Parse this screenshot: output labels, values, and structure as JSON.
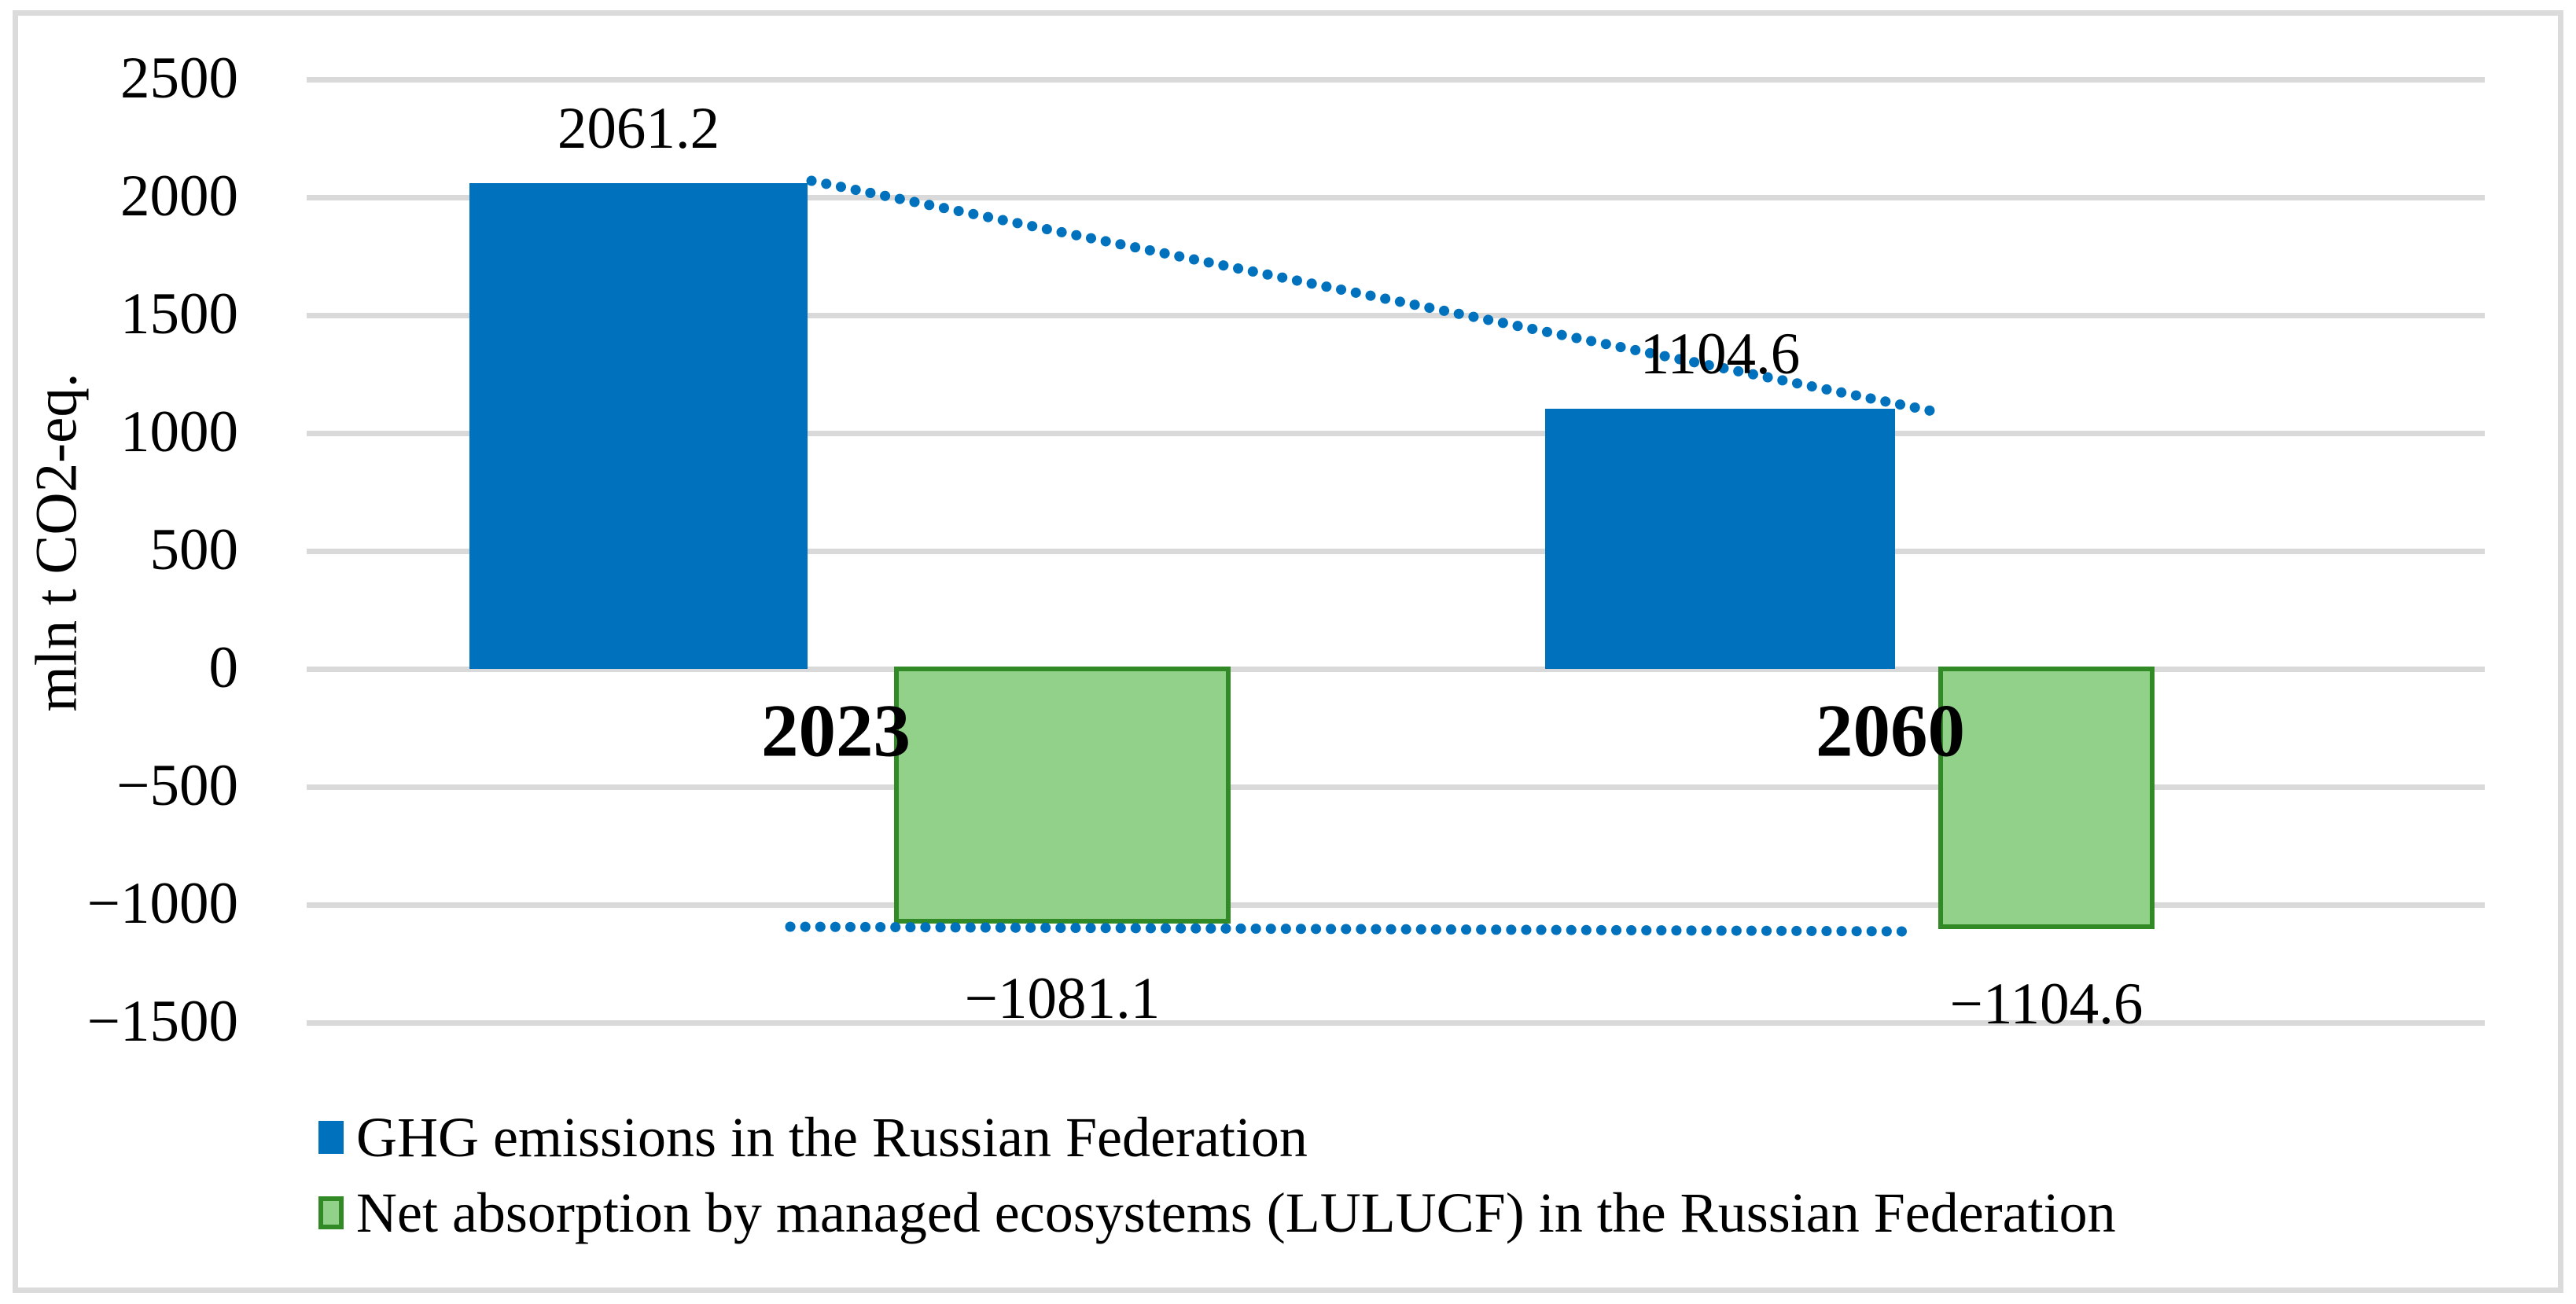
{
  "figure": {
    "background": "#FFFFFF",
    "frame_color": "#DBDBDB"
  },
  "axis": {
    "title": "mln t CO2-eq.",
    "tick_labels": [
      "2500",
      "2000",
      "1500",
      "1000",
      "500",
      "0",
      "−500",
      "−1000",
      "−1500"
    ],
    "tick_values": [
      2500,
      2000,
      1500,
      1000,
      500,
      0,
      -500,
      -1000,
      -1500
    ],
    "ylim": [
      -1500,
      2500
    ],
    "grid": true,
    "gridline_color": "#D9D9D9"
  },
  "chart_data": {
    "type": "bar",
    "categories": [
      "2023",
      "2060"
    ],
    "series": [
      {
        "name": "GHG emissions in the Russian Federation",
        "color": "#0071BC",
        "values": [
          2061.2,
          1104.6
        ],
        "labels": [
          "2061.2",
          "1104.6"
        ]
      },
      {
        "name": "Net absorption by managed ecosystems (LULUCF) in the Russian Federation",
        "fill_color": "#92D189",
        "border_color": "#318A26",
        "values": [
          -1081.1,
          -1104.6
        ],
        "labels": [
          "−1081.1",
          "−1104.6"
        ]
      }
    ],
    "trendlines": [
      {
        "series": "GHG emissions in the Russian Federation",
        "style": "dotted",
        "color": "#0071BC",
        "from_value": 2061.2,
        "to_value": 1104.6
      },
      {
        "series": "Net absorption by managed ecosystems (LULUCF) in the Russian Federation",
        "style": "dotted",
        "color": "#0071BC",
        "from_value": -1081.1,
        "to_value": -1104.6
      }
    ],
    "ylabel": "mln t CO2-eq.",
    "legend_position": "bottom-left"
  },
  "legend": {
    "items": [
      {
        "label": "GHG emissions in the Russian Federation",
        "swatch": "#0071BC"
      },
      {
        "label": "Net absorption by managed ecosystems (LULUCF) in the Russian Federation",
        "swatch_fill": "#92D189",
        "swatch_border": "#318A26"
      }
    ]
  }
}
